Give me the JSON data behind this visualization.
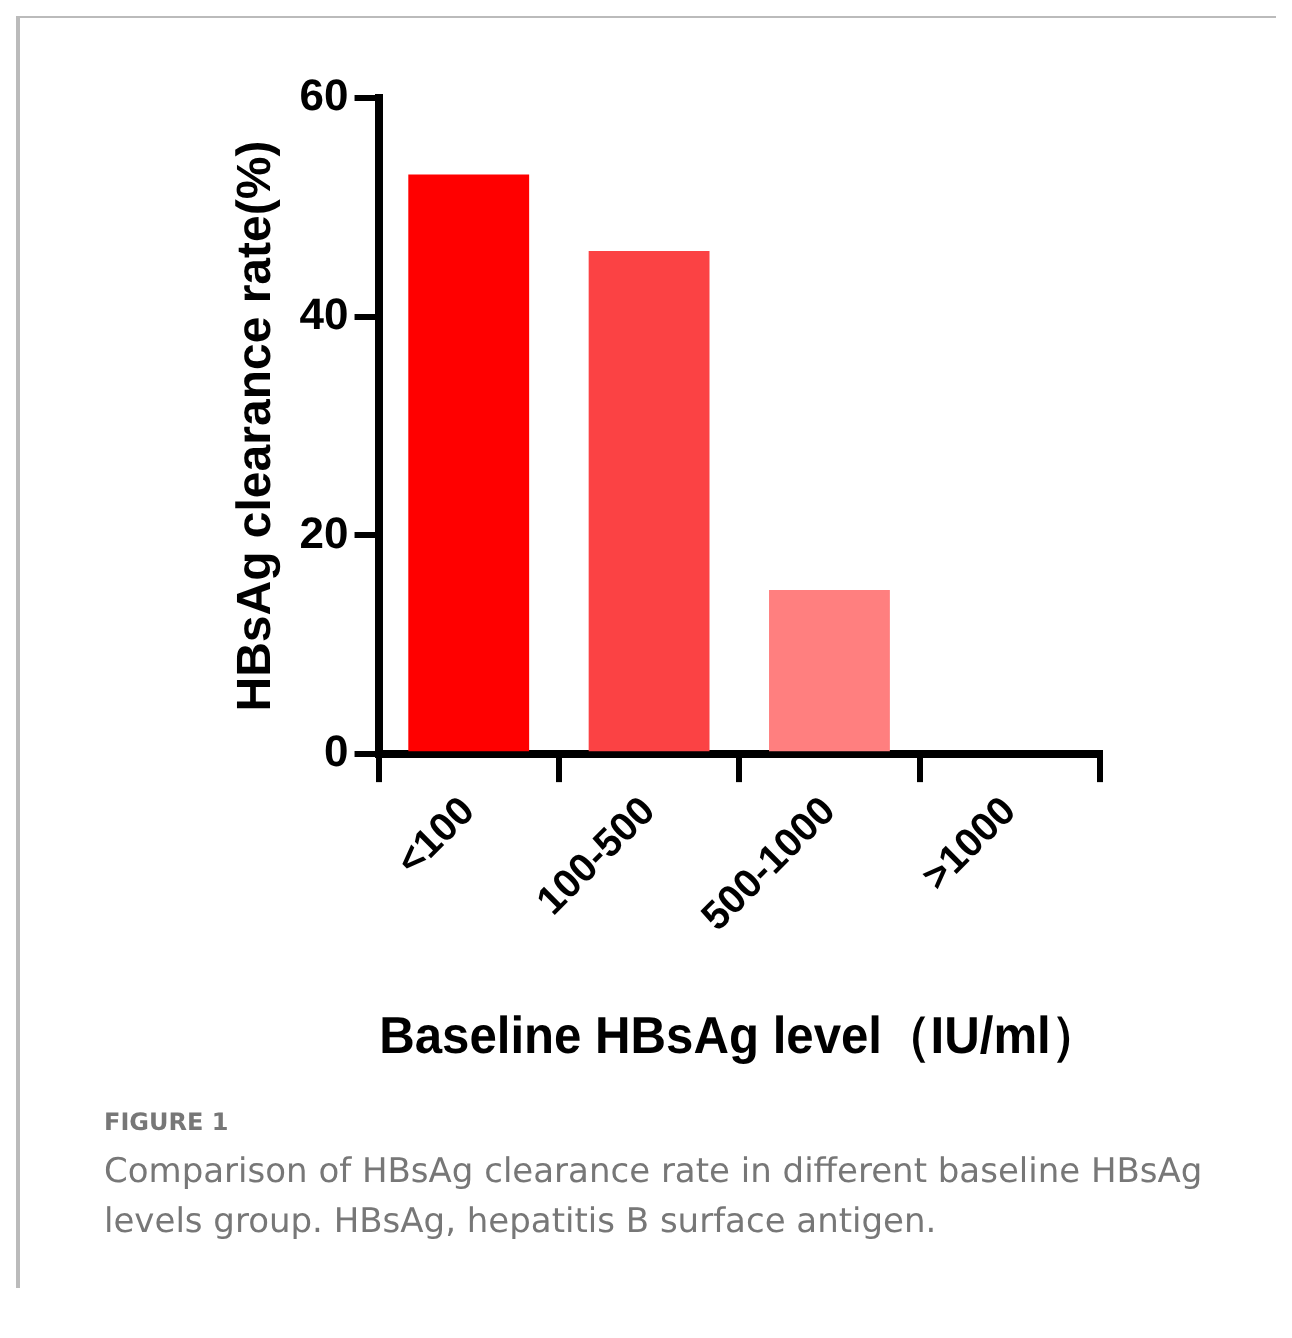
{
  "chart_data": {
    "type": "bar",
    "ylabel": "HBsAg clearance rate(%)",
    "xlabel": "Baseline HBsAg level（IU/ml）",
    "categories": [
      "<100",
      "100-500",
      "500-1000",
      ">1000"
    ],
    "values": [
      53,
      46,
      15,
      0
    ],
    "colors": [
      "#ff0000",
      "#fb4244",
      "#ff7f7f",
      "#ffbfbf"
    ],
    "ylim": [
      0,
      60
    ],
    "yticks": [
      0,
      20,
      40,
      60
    ],
    "grid": false,
    "legend": false,
    "annotations": [
      "FIGURE 1",
      "Comparison of HBsAg clearance rate in different baseline HBsAg levels group. HBsAg, hepatitis B surface antigen."
    ]
  }
}
